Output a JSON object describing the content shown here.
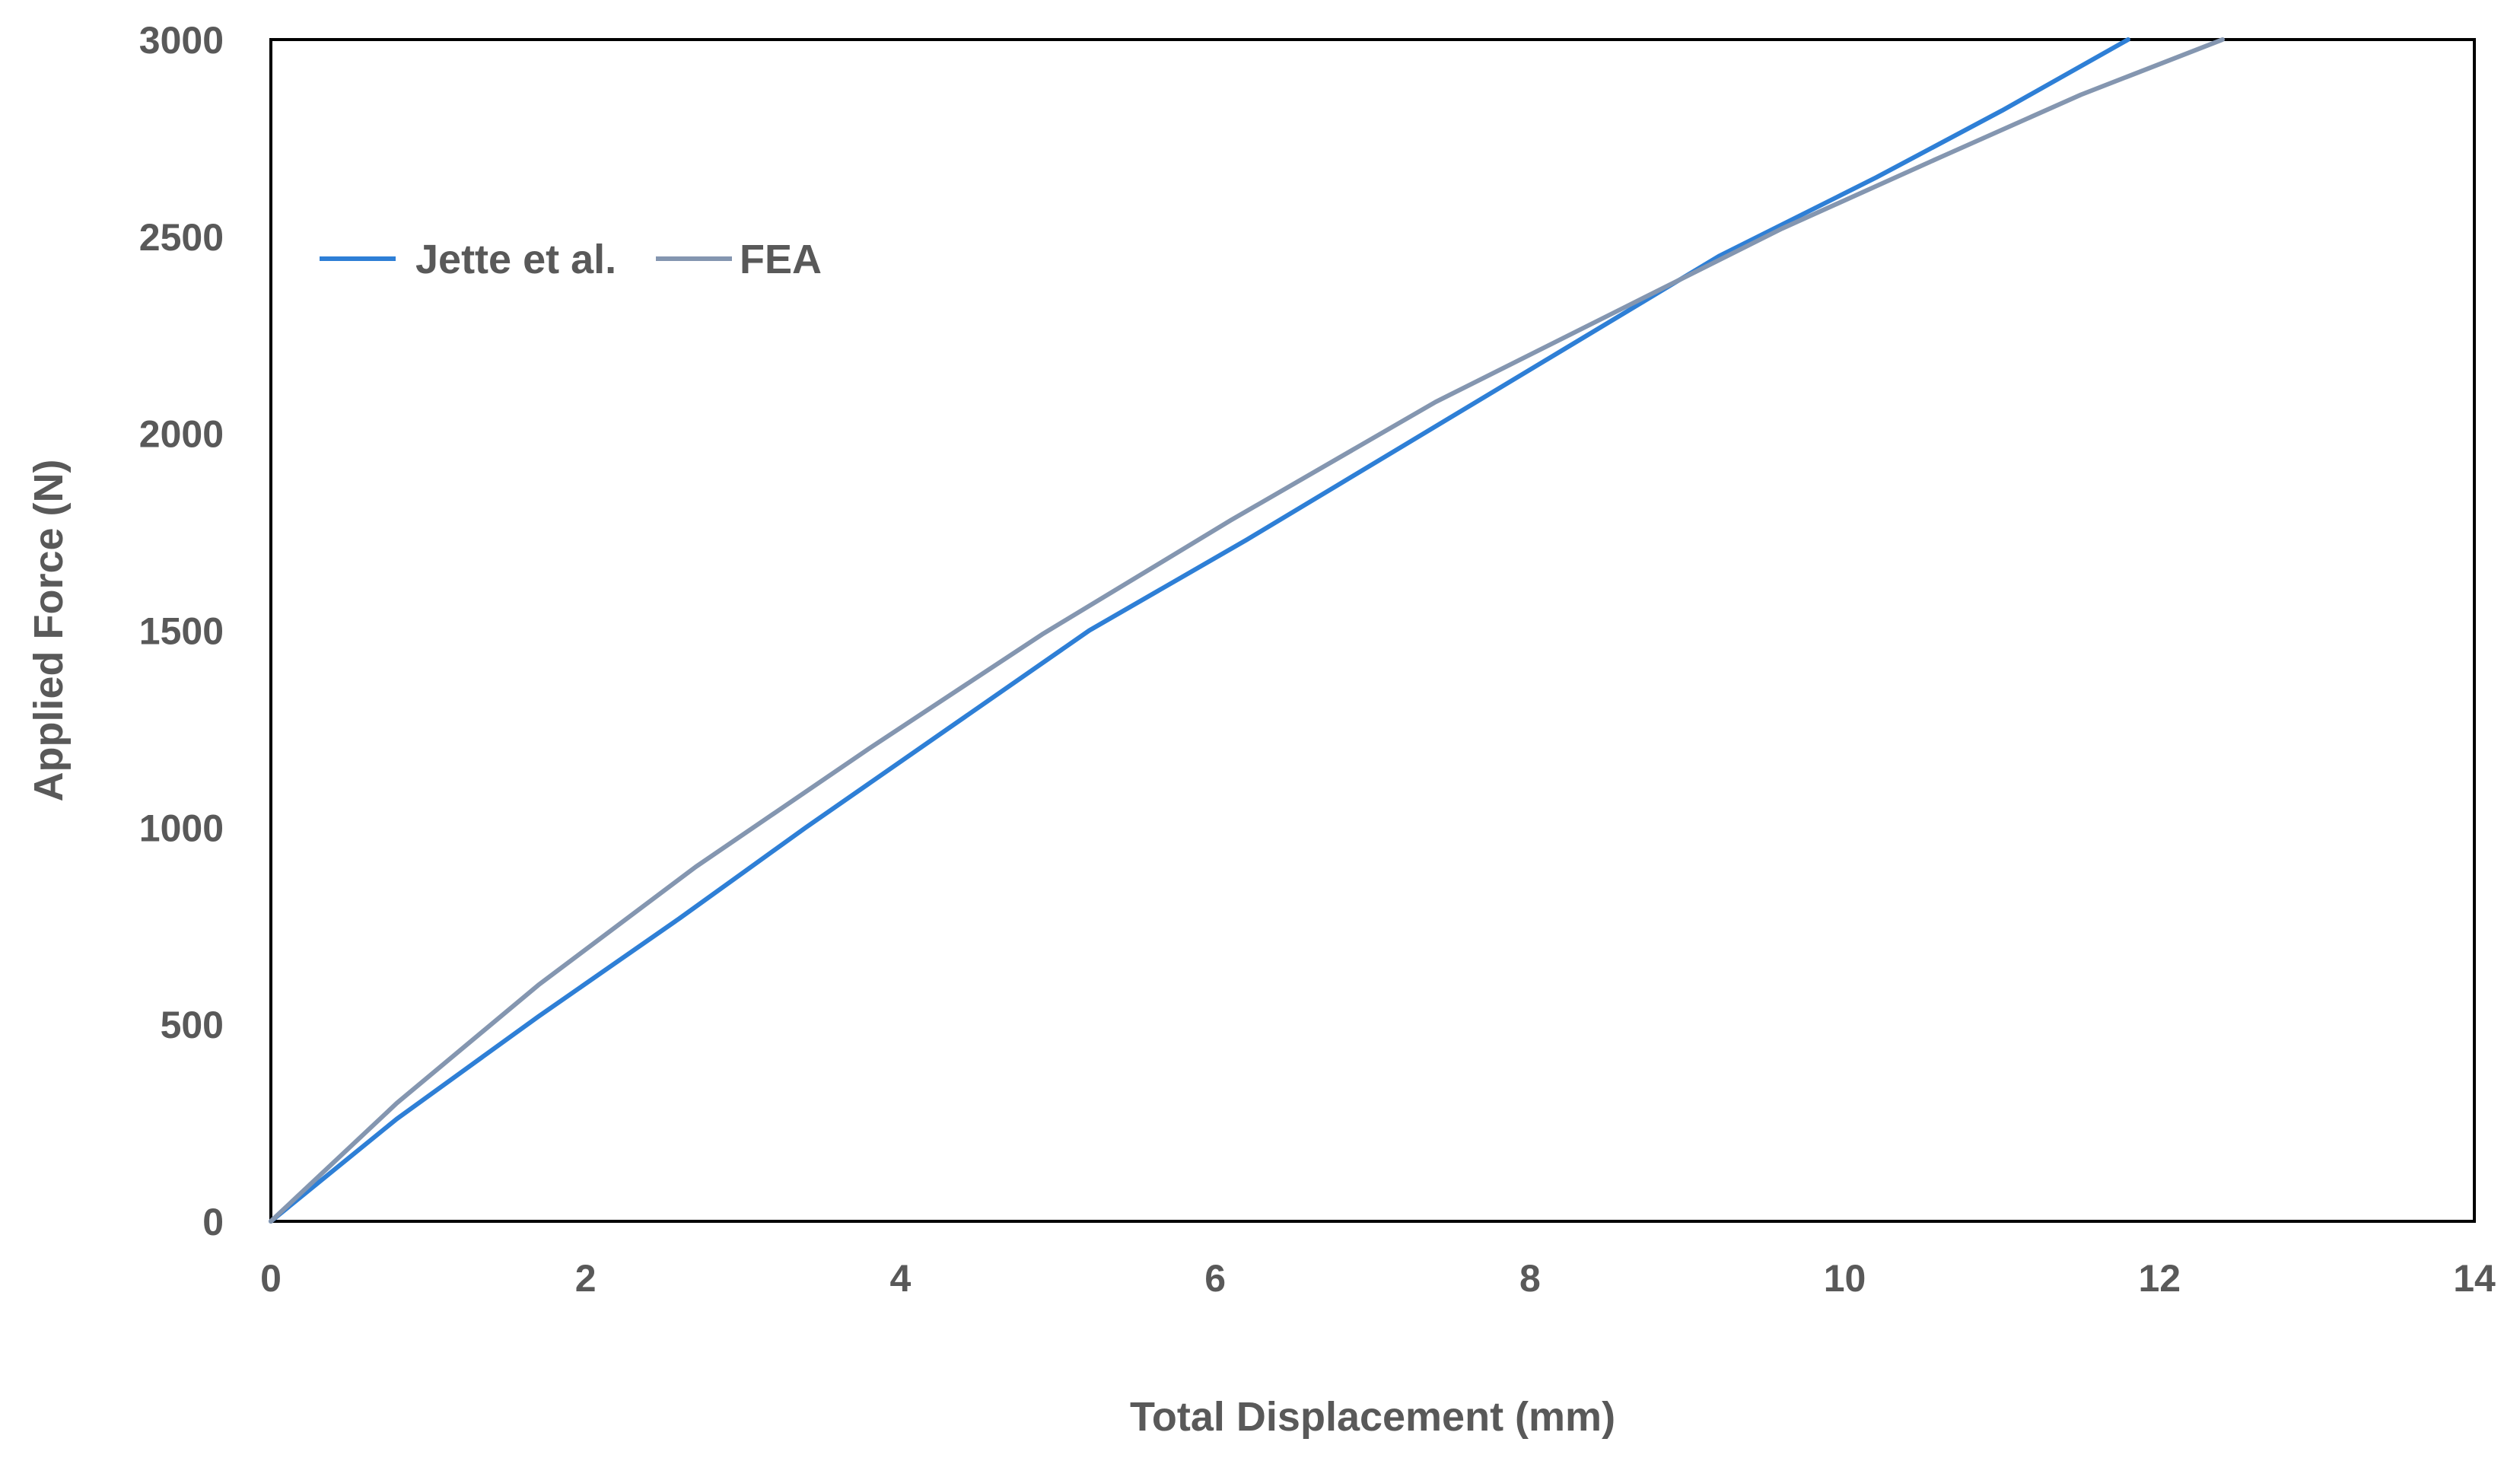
{
  "chart_data": {
    "type": "line",
    "title": "",
    "xlabel": "Total Displacement (mm)",
    "ylabel": "Applied Force (N)",
    "xlim": [
      0,
      14
    ],
    "ylim": [
      0,
      3000
    ],
    "xticks": [
      0,
      2,
      4,
      6,
      8,
      10,
      12,
      14
    ],
    "yticks": [
      0,
      500,
      1000,
      1500,
      2000,
      2500,
      3000
    ],
    "xtick_labels": [
      "0",
      "2",
      "4",
      "6",
      "8",
      "10",
      "12",
      "14"
    ],
    "ytick_labels": [
      "0",
      "500",
      "1000",
      "1500",
      "2000",
      "2500",
      "3000"
    ],
    "grid": false,
    "legend": "top-left",
    "series": [
      {
        "name": "Jette et al.",
        "color": "#2E7FD6",
        "x": [
          0,
          0.8,
          1.7,
          2.6,
          3.4,
          4.3,
          5.2,
          6.2,
          7.2,
          8.2,
          9.2,
          10.2,
          11.0,
          11.8
        ],
        "y": [
          0,
          260,
          520,
          770,
          1000,
          1250,
          1500,
          1730,
          1970,
          2210,
          2450,
          2650,
          2820,
          3000
        ]
      },
      {
        "name": "FEA",
        "color": "#8496B0",
        "x": [
          0,
          0.8,
          1.7,
          2.7,
          3.8,
          4.9,
          6.1,
          7.4,
          8.6,
          9.6,
          10.6,
          11.5,
          12.4
        ],
        "y": [
          0,
          300,
          600,
          900,
          1200,
          1490,
          1780,
          2080,
          2320,
          2520,
          2700,
          2860,
          3000
        ]
      }
    ]
  }
}
